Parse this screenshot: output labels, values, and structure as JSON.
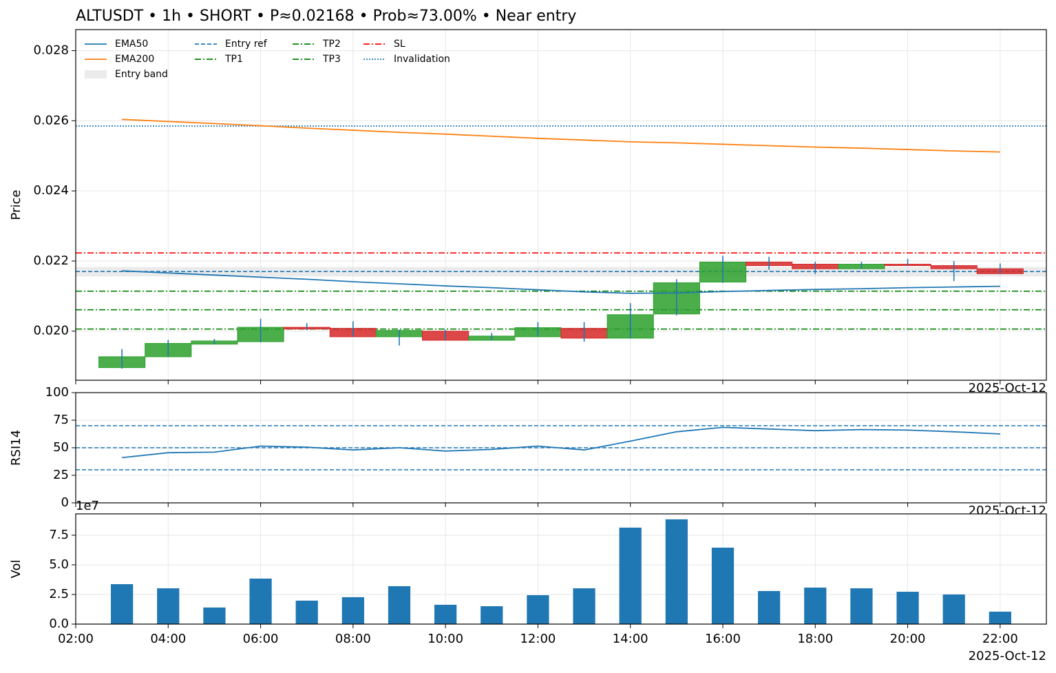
{
  "chart_data": [
    {
      "type": "candlestick",
      "title": "ALTUSDT • 1h • SHORT • P≈0.02168 • Prob≈73.00% • Near entry",
      "ylabel": "Price",
      "offset_label": "2025-Oct-12",
      "x": [
        3,
        4,
        5,
        6,
        7,
        8,
        9,
        10,
        11,
        12,
        13,
        14,
        15,
        16,
        17,
        18,
        19,
        20,
        21,
        22
      ],
      "open": [
        0.01896,
        0.01927,
        0.01963,
        0.0197,
        0.02011,
        0.02008,
        0.01984,
        0.02,
        0.01974,
        0.01984,
        0.02008,
        0.0198,
        0.02049,
        0.0214,
        0.02197,
        0.02191,
        0.02178,
        0.02191,
        0.02187,
        0.02178
      ],
      "high": [
        0.01949,
        0.01975,
        0.01978,
        0.02035,
        0.02023,
        0.02028,
        0.02004,
        0.02004,
        0.01995,
        0.02026,
        0.02026,
        0.0208,
        0.02148,
        0.02215,
        0.02212,
        0.02198,
        0.02198,
        0.02206,
        0.022,
        0.02193
      ],
      "low": [
        0.01893,
        0.01927,
        0.01963,
        0.01968,
        0.02003,
        0.01984,
        0.01959,
        0.01974,
        0.01973,
        0.01985,
        0.0197,
        0.0198,
        0.02045,
        0.02138,
        0.02175,
        0.02163,
        0.02178,
        0.02187,
        0.02143,
        0.02164
      ],
      "close": [
        0.01927,
        0.01965,
        0.01972,
        0.02011,
        0.02006,
        0.01984,
        0.02002,
        0.01974,
        0.01986,
        0.0201,
        0.0198,
        0.02047,
        0.02138,
        0.02197,
        0.02187,
        0.02178,
        0.02191,
        0.02187,
        0.02178,
        0.02164
      ],
      "up_color": "#2ca02c",
      "down_color": "#d62728",
      "wick_color": "#1f77b4",
      "series": [
        {
          "name": "EMA50",
          "color": "#1f77b4",
          "values": [
            0.02172,
            0.02166,
            0.0216,
            0.02154,
            0.02148,
            0.02141,
            0.02135,
            0.02129,
            0.02124,
            0.02118,
            0.02112,
            0.02108,
            0.02109,
            0.02113,
            0.02116,
            0.02119,
            0.02121,
            0.02124,
            0.02126,
            0.02128
          ]
        },
        {
          "name": "EMA200",
          "color": "#ff7f0e",
          "values": [
            0.02604,
            0.02598,
            0.02592,
            0.02586,
            0.02579,
            0.02573,
            0.02567,
            0.02562,
            0.02556,
            0.0255,
            0.02545,
            0.0254,
            0.02537,
            0.02533,
            0.02529,
            0.02525,
            0.02522,
            0.02518,
            0.02514,
            0.02511
          ]
        }
      ],
      "bands": [
        {
          "name": "Entry band",
          "color": "#cccccc",
          "range": [
            0.02156,
            0.02183
          ]
        }
      ],
      "hlines": [
        {
          "name": "Entry ref",
          "value": 0.0217,
          "color": "#1f77b4",
          "dash": "dashed"
        },
        {
          "name": "TP1",
          "value": 0.02114,
          "color": "#008000",
          "dash": "dashdot"
        },
        {
          "name": "TP2",
          "value": 0.02061,
          "color": "#008000",
          "dash": "dashdot"
        },
        {
          "name": "TP3",
          "value": 0.02006,
          "color": "#008000",
          "dash": "dashdot"
        },
        {
          "name": "SL",
          "value": 0.02223,
          "color": "#ff0000",
          "dash": "dashdot"
        },
        {
          "name": "Invalidation",
          "value": 0.02585,
          "color": "#1f77b4",
          "dash": "dotted"
        }
      ],
      "xlim": [
        2,
        23
      ],
      "xticks": [
        2,
        4,
        6,
        8,
        10,
        12,
        14,
        16,
        18,
        20,
        22
      ],
      "ylim": [
        0.0186,
        0.0286
      ],
      "yticks": [
        {
          "value": 0.02,
          "label": "0.020"
        },
        {
          "value": 0.022,
          "label": "0.022"
        },
        {
          "value": 0.024,
          "label": "0.024"
        },
        {
          "value": 0.026,
          "label": "0.026"
        },
        {
          "value": 0.028,
          "label": "0.028"
        }
      ],
      "grid": true,
      "legend": "upper left"
    },
    {
      "type": "line",
      "ylabel": "RSI14",
      "offset_label": "2025-Oct-12",
      "x": [
        3,
        4,
        5,
        6,
        7,
        8,
        9,
        10,
        11,
        12,
        13,
        14,
        15,
        16,
        17,
        18,
        19,
        20,
        21,
        22
      ],
      "series": [
        {
          "color": "#1f77b4",
          "values": [
            41,
            45.5,
            46,
            51.5,
            50.5,
            48,
            50,
            47,
            48.5,
            51.5,
            48,
            56,
            64.5,
            68.5,
            67,
            65.5,
            66.5,
            66,
            64.5,
            62.5
          ]
        }
      ],
      "hlines": [
        {
          "value": 30,
          "color": "#1f77b4",
          "dash": "dashed"
        },
        {
          "value": 50,
          "color": "#1f77b4",
          "dash": "dashed"
        },
        {
          "value": 70,
          "color": "#1f77b4",
          "dash": "dashed"
        }
      ],
      "xlim": [
        2,
        23
      ],
      "xticks": [
        2,
        4,
        6,
        8,
        10,
        12,
        14,
        16,
        18,
        20,
        22
      ],
      "ylim": [
        0,
        100
      ],
      "yticks": [
        0,
        25,
        50,
        75,
        100
      ],
      "grid": true
    },
    {
      "type": "bar",
      "ylabel": "Vol",
      "offset_label": "2025-Oct-12",
      "offset_text": "1e7",
      "x": [
        3,
        4,
        5,
        6,
        7,
        8,
        9,
        10,
        11,
        12,
        13,
        14,
        15,
        16,
        17,
        18,
        19,
        20,
        21,
        22
      ],
      "values": [
        33700000,
        30200000,
        14000000,
        38400000,
        19800000,
        22700000,
        32000000,
        16300000,
        15100000,
        24400000,
        30200000,
        81400000,
        88400000,
        64500000,
        27900000,
        30800000,
        30200000,
        27300000,
        25000000,
        10500000
      ],
      "color": "#1f77b4",
      "xlim": [
        2,
        23
      ],
      "xticks": [
        {
          "value": 2,
          "label": "02:00"
        },
        {
          "value": 4,
          "label": "04:00"
        },
        {
          "value": 6,
          "label": "06:00"
        },
        {
          "value": 8,
          "label": "08:00"
        },
        {
          "value": 10,
          "label": "10:00"
        },
        {
          "value": 12,
          "label": "12:00"
        },
        {
          "value": 14,
          "label": "14:00"
        },
        {
          "value": 16,
          "label": "16:00"
        },
        {
          "value": 18,
          "label": "18:00"
        },
        {
          "value": 20,
          "label": "20:00"
        },
        {
          "value": 22,
          "label": "22:00"
        }
      ],
      "ylim": [
        0,
        93000000
      ],
      "yticks": [
        {
          "value": 0,
          "label": "0.0"
        },
        {
          "value": 25000000,
          "label": "2.5"
        },
        {
          "value": 50000000,
          "label": "5.0"
        },
        {
          "value": 75000000,
          "label": "7.5"
        }
      ],
      "grid": true
    }
  ]
}
